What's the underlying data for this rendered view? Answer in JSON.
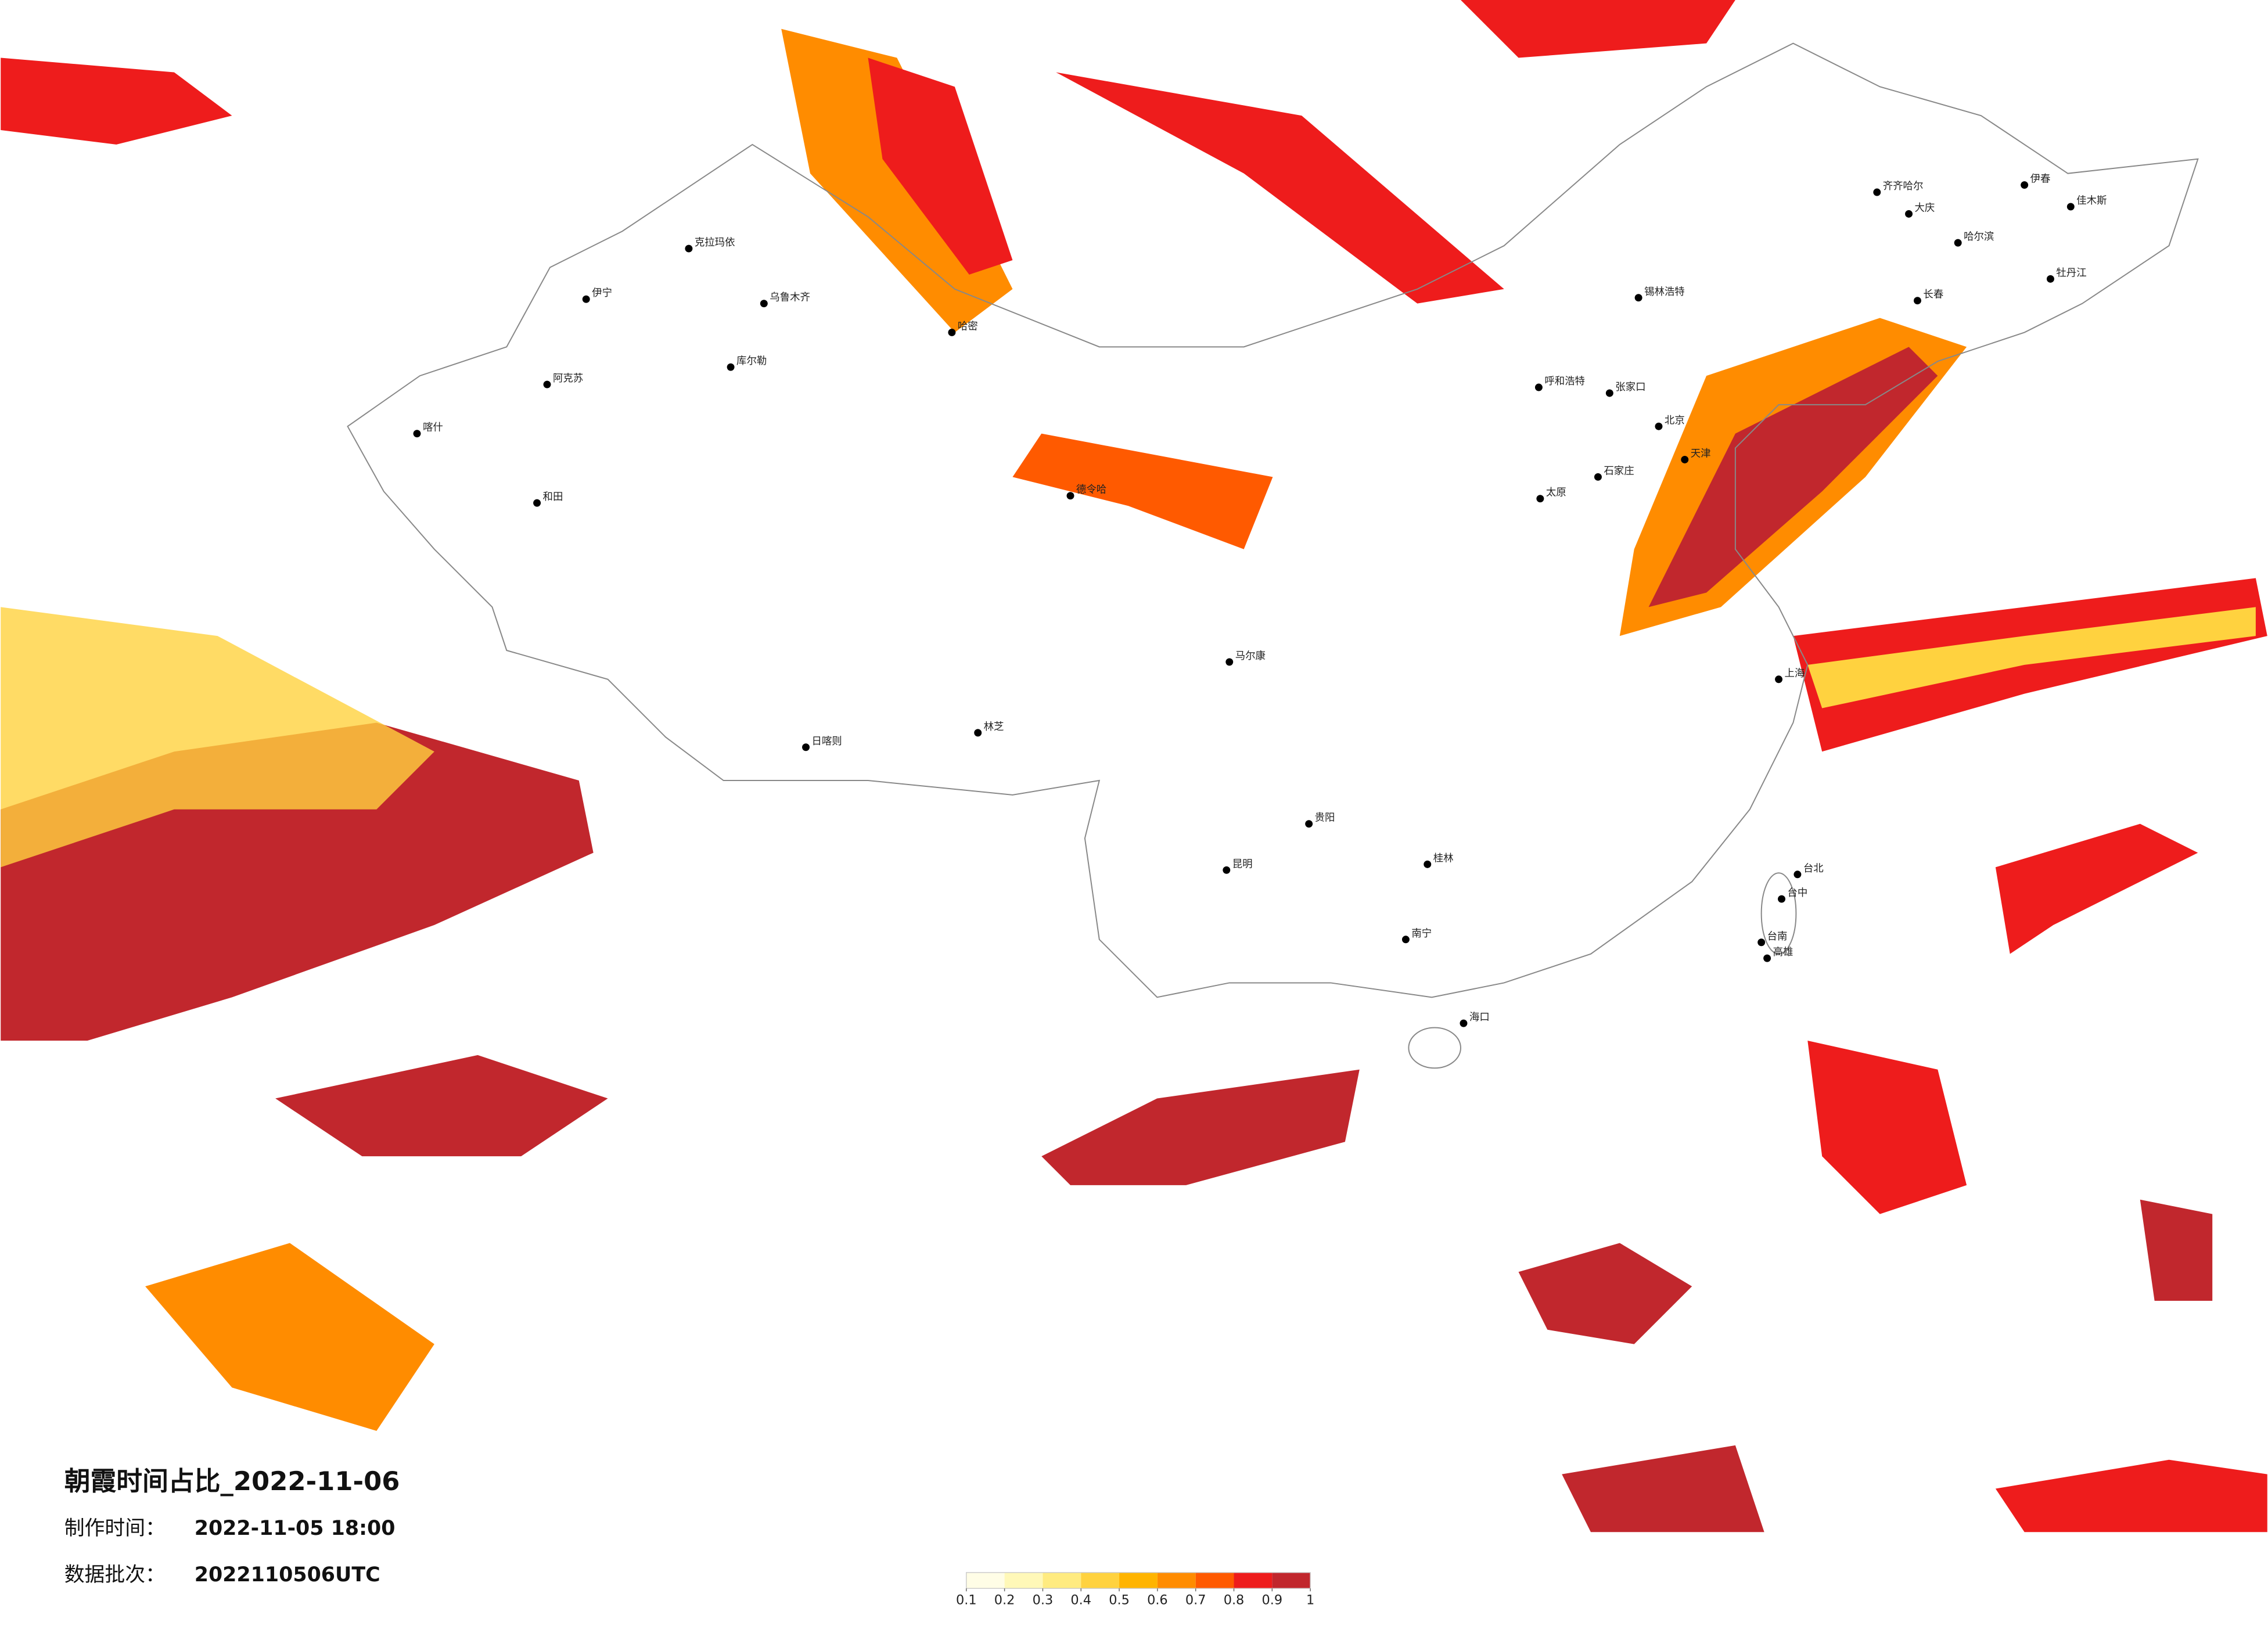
{
  "title": "朝霞时间占比_2022-11-06",
  "made_time": {
    "label": "制作时间：",
    "value": "2022-11-05 18:00"
  },
  "batch": {
    "label": "数据批次：",
    "value": "2022110506UTC"
  },
  "legend": {
    "ticks": [
      0.1,
      0.2,
      0.3,
      0.4,
      0.5,
      0.6,
      0.7,
      0.8,
      0.9,
      1
    ],
    "colors": [
      "#fffde6",
      "#fff8b8",
      "#ffeb80",
      "#ffd23f",
      "#ffb400",
      "#ff8c00",
      "#ff5a00",
      "#ee1c1c",
      "#c1272d"
    ]
  },
  "cities": [
    "克拉玛依",
    "伊宁",
    "乌鲁木齐",
    "库尔勒",
    "阿克苏",
    "哈密",
    "喀什",
    "和田",
    "齐齐哈尔",
    "大庆",
    "哈尔滨",
    "伊春",
    "佳木斯",
    "牡丹江",
    "长春",
    "锡林浩特",
    "呼和浩特",
    "张家口",
    "石家庄",
    "太原",
    "北京",
    "天津",
    "上海",
    "贵阳",
    "昆明",
    "南宁",
    "桂林",
    "海口",
    "台北",
    "台中",
    "台南",
    "高雄",
    "日喀则",
    "林芝",
    "马尔康",
    "德令哈"
  ]
}
